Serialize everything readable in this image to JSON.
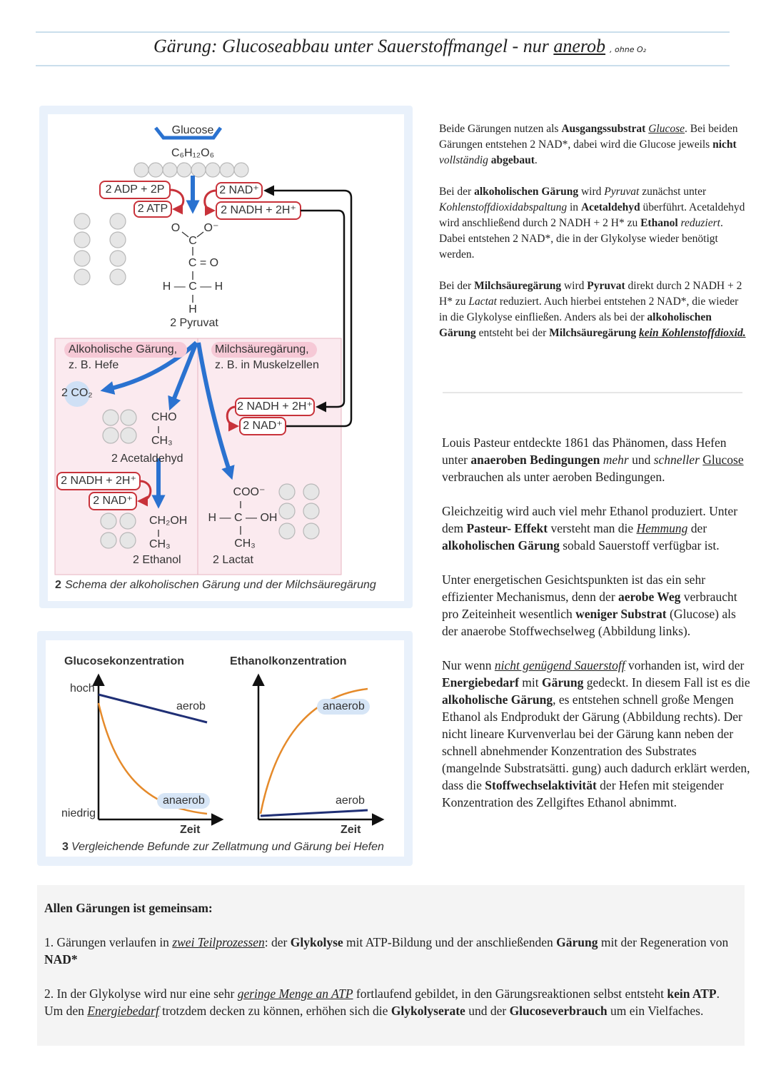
{
  "header": {
    "title": [
      "Gärung: Glucoseabbau unter Sauerstoffmangel - nur ",
      {
        "text": "anerob",
        "style": "u"
      }
    ],
    "note": ", ohne O₂"
  },
  "figure2": {
    "glucose": "Glucose",
    "glucose_formula": "C₆H₁₂O₆",
    "adp": "2 ADP + 2P",
    "atp": "2 ATP",
    "nad_top": "2 NAD⁺",
    "nadh_top": "2 NADH + 2H⁺",
    "pyruvate_formula": [
      "O",
      "O⁻",
      "C",
      "C = O",
      "H — C — H",
      "H"
    ],
    "pyruvate": "2 Pyruvat",
    "alcoholic": "Alkoholische Gärung,",
    "alcoholic_example": "z. B. Hefe",
    "lactic": "Milchsäuregärung,",
    "lactic_example": "z. B. in Muskelzellen",
    "co2": "2 CO₂",
    "acetaldehyde_formula": [
      "CHO",
      "CH₃"
    ],
    "acetaldehyde": "2 Acetaldehyd",
    "nadh_lactic": "2 NADH + 2H⁺",
    "nad_lactic": "2 NAD⁺",
    "nadh_alcoholic": "2 NADH + 2H⁺",
    "nad_alcoholic": "2 NAD⁺",
    "ethanol_formula": [
      "CH₂OH",
      "CH₃"
    ],
    "ethanol": "2 Ethanol",
    "lactate_formula": [
      "COO⁻",
      "H — C — OH",
      "CH₃"
    ],
    "lactate": "2 Lactat",
    "caption_number": "2",
    "caption": "Schema der alkoholischen Gärung und der Milchsäuregärung"
  },
  "figure3": {
    "left_title": "Glucosekonzentration",
    "right_title": "Ethanolkonzentration",
    "high": "hoch",
    "low": "niedrig",
    "left_aerob": "aerob",
    "left_anaerob": "anaerob",
    "left_x": "Zeit",
    "right_anaerob": "anaerob",
    "right_aerob": "aerob",
    "right_x": "Zeit",
    "caption_number": "3",
    "caption": "Vergleichende Befunde zur Zellatmung und Gärung bei Hefen"
  },
  "text_right": {
    "paragraphs": [
      {
        "runs": [
          "Beide Gärungen nutzen als ",
          {
            "text": "Ausgangssubstrat",
            "style": "b"
          },
          " ",
          {
            "text": "Glucose",
            "style": "iu"
          },
          ". Bei beiden Gärungen entstehen 2 NAD*, dabei wird die Glucose jeweils ",
          {
            "text": "nicht",
            "style": "b"
          },
          " ",
          {
            "text": "vollständig",
            "style": "i"
          },
          " ",
          {
            "text": "abgebaut",
            "style": "b"
          },
          "."
        ]
      },
      {
        "runs": [
          "Bei der ",
          {
            "text": "alkoholischen Gärung",
            "style": "b"
          },
          " wird ",
          {
            "text": "Pyruvat",
            "style": "i"
          },
          " zunächst unter ",
          {
            "text": "Kohlenstoffdioxidabspaltung",
            "style": "i"
          },
          " in ",
          {
            "text": "Acetaldehyd",
            "style": "b"
          },
          " überführt. Acetaldehyd wird anschließend durch 2 NADH + 2 H* zu ",
          {
            "text": "Ethanol",
            "style": "b"
          },
          " ",
          {
            "text": "reduziert",
            "style": "i"
          },
          ". Dabei entstehen 2 NAD*, die in der Glykolyse wieder benötigt werden."
        ]
      },
      {
        "runs": [
          "Bei der ",
          {
            "text": "Milchsäuregärung",
            "style": "b"
          },
          " wird ",
          {
            "text": "Pyruvat",
            "style": "b"
          },
          " direkt durch 2 NADH + 2 H* zu ",
          {
            "text": "Lactat",
            "style": "i"
          },
          " reduziert. Auch hierbei entstehen 2 NAD*, die wieder in die Glykolyse einfließen. Anders als bei der ",
          {
            "text": "alkoholischen Gärung",
            "style": "b"
          },
          " entsteht bei der ",
          {
            "text": "Milchsäuregärung",
            "style": "b"
          },
          " ",
          {
            "text": "kein Kohlenstoffdioxid.",
            "style": "biu"
          }
        ]
      }
    ]
  },
  "text_pasteur": {
    "paragraphs": [
      {
        "runs": [
          "Louis Pasteur entdeckte 1861 das Phänomen, dass Hefen unter ",
          {
            "text": "anaeroben Bedingungen",
            "style": "b"
          },
          " ",
          {
            "text": "mehr",
            "style": "i"
          },
          " und ",
          {
            "text": "schneller",
            "style": "i"
          },
          " ",
          {
            "text": "Glucose",
            "style": "u"
          },
          " verbrauchen als unter aeroben Bedingungen."
        ]
      },
      {
        "runs": [
          "Gleichzeitig wird auch viel mehr Ethanol produziert. Unter dem ",
          {
            "text": "Pasteur- Effekt",
            "style": "b"
          },
          " versteht man die ",
          {
            "text": "Hemmung",
            "style": "iu"
          },
          " der ",
          {
            "text": "alkoholischen Gärung",
            "style": "b"
          },
          " sobald Sauerstoff verfügbar ist."
        ]
      },
      {
        "runs": [
          "Unter energetischen Gesichtspunkten ist das ein sehr effizienter Mechanismus, denn der ",
          {
            "text": "aerobe Weg",
            "style": "b"
          },
          " verbraucht pro Zeiteinheit wesentlich ",
          {
            "text": "weniger Substrat",
            "style": "b"
          },
          " (Glucose) als der anaerobe Stoffwechselweg (Abbildung links)."
        ]
      },
      {
        "runs": [
          "Nur wenn ",
          {
            "text": "nicht genügend Sauerstoff",
            "style": "iu"
          },
          " vorhanden ist, wird der ",
          {
            "text": "Energiebedarf",
            "style": "b"
          },
          " mit ",
          {
            "text": "Gärung",
            "style": "b"
          },
          " gedeckt. In diesem Fall ist es die ",
          {
            "text": "alkoholische Gärung",
            "style": "b"
          },
          ", es entstehen schnell große Mengen Ethanol als Endprodukt der Gärung (Abbildung rechts). Der nicht lineare Kurvenverlau bei der Gärung kann neben der schnell abnehmender Konzentration des Substrates (mangelnde Substratsätti. gung) auch dadurch erklärt werden, dass die ",
          {
            "text": "Stoffwechselaktivität",
            "style": "b"
          },
          " der Hefen mit steigender Konzentration des Zellgiftes Ethanol abnimmt."
        ]
      }
    ]
  },
  "summary": {
    "paragraphs": [
      {
        "runs": [
          {
            "text": "Allen Gärungen ist gemeinsam:",
            "style": "b"
          }
        ]
      },
      {
        "runs": [
          "1. Gärungen verlaufen in ",
          {
            "text": "zwei Teilprozessen",
            "style": "iu"
          },
          ": der ",
          {
            "text": "Glykolyse",
            "style": "b"
          },
          " mit ATP-Bildung und der anschließenden ",
          {
            "text": "Gärung",
            "style": "b"
          },
          " mit der Regeneration von ",
          {
            "text": "NAD*",
            "style": "b"
          }
        ]
      },
      {
        "runs": [
          "2. In der Glykolyse wird nur eine sehr ",
          {
            "text": "geringe Menge an ATP",
            "style": "iu"
          },
          " fortlaufend gebildet, in den Gärungsreaktionen selbst entsteht ",
          {
            "text": "kein ATP",
            "style": "b"
          },
          ". Um den ",
          {
            "text": "Energiebedarf",
            "style": "iu"
          },
          " trotzdem decken zu können, erhöhen sich die ",
          {
            "text": "Glykolyserate",
            "style": "b"
          },
          " und der ",
          {
            "text": "Glucoseverbrauch",
            "style": "b"
          },
          " um ein Vielfaches."
        ]
      }
    ]
  }
}
